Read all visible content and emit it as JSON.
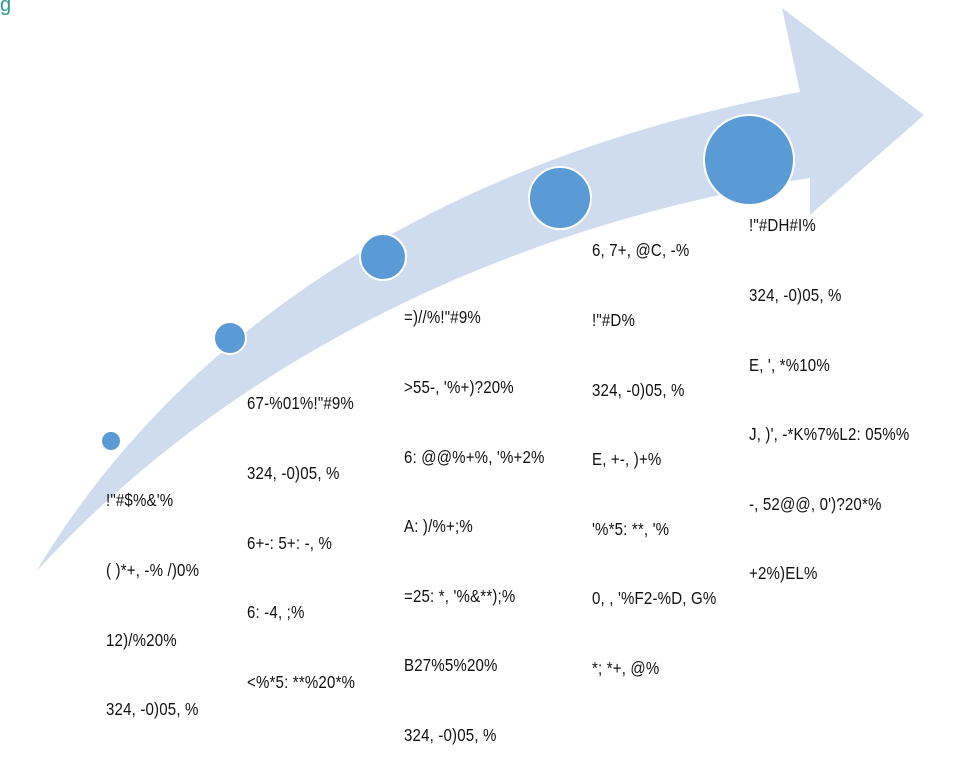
{
  "top_fragment": "g",
  "colors": {
    "arrow_fill": "#cfdcef",
    "node_fill": "#5b9bd5",
    "node_border": "#ffffff",
    "text": "#111111",
    "fragment": "#2e9a8f"
  },
  "stages": [
    {
      "id": "stage-1",
      "lines": [
        "!\"#$%&'%",
        "( )*+, -% /)0%",
        "12)/%20%",
        "324, -0)05, %"
      ]
    },
    {
      "id": "stage-2",
      "lines": [
        "67-%01%!\"#9%",
        "324, -0)05, %",
        "6+-: 5+: -, %",
        "6: -4, ;%",
        "<%*5: **%20*%"
      ]
    },
    {
      "id": "stage-3",
      "lines": [
        "=)//%!\"#9%",
        ">55-, '%+)?20%",
        "6: @@%+%, '%+2%",
        "A: )/%+;%",
        "=25: *, '%&**);%",
        "B27%5%20%",
        "324, -0)05, %"
      ]
    },
    {
      "id": "stage-4",
      "lines": [
        "6, 7+, @C, -%",
        "!\"#D%",
        "324, -0)05, %",
        "E, +-, )+%",
        "'%*5: **, '%",
        "0, , '%F2-%D, G%",
        "*; *+, @%"
      ]
    },
    {
      "id": "stage-5",
      "lines": [
        "!\"#DH#I%",
        "324, -0)05, %",
        "E, ', *%10%",
        "J, )', -*K%7%L2: 05%%",
        "-, 52@@, 0')?20*%",
        "+2%)EL%"
      ]
    }
  ]
}
